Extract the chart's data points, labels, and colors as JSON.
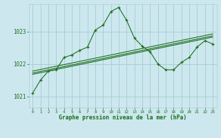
{
  "title": "Graphe pression niveau de la mer (hPa)",
  "background_color": "#cce8ee",
  "grid_color": "#aacdd6",
  "line_color": "#1a6b1a",
  "text_color": "#1a6b1a",
  "ylim": [
    1020.65,
    1023.85
  ],
  "xlim": [
    -0.5,
    23.5
  ],
  "yticks": [
    1021,
    1022,
    1023
  ],
  "xticks": [
    0,
    1,
    2,
    3,
    4,
    5,
    6,
    7,
    8,
    9,
    10,
    11,
    12,
    13,
    14,
    15,
    16,
    17,
    18,
    19,
    20,
    21,
    22,
    23
  ],
  "series": {
    "main": [
      1021.1,
      1021.5,
      1021.78,
      1021.82,
      1022.2,
      1022.28,
      1022.42,
      1022.52,
      1023.05,
      1023.2,
      1023.62,
      1023.75,
      1023.35,
      1022.8,
      1022.55,
      1022.38,
      1022.0,
      1021.82,
      1021.82,
      1022.05,
      1022.2,
      1022.52,
      1022.72,
      1022.62
    ],
    "smooth1": [
      1021.78,
      1021.83,
      1021.88,
      1021.93,
      1021.98,
      1022.03,
      1022.08,
      1022.13,
      1022.18,
      1022.23,
      1022.28,
      1022.33,
      1022.38,
      1022.43,
      1022.48,
      1022.53,
      1022.58,
      1022.63,
      1022.68,
      1022.73,
      1022.78,
      1022.83,
      1022.88,
      1022.93
    ],
    "smooth2": [
      1021.72,
      1021.77,
      1021.82,
      1021.87,
      1021.92,
      1021.97,
      1022.02,
      1022.07,
      1022.12,
      1022.17,
      1022.22,
      1022.27,
      1022.32,
      1022.37,
      1022.42,
      1022.47,
      1022.52,
      1022.57,
      1022.62,
      1022.67,
      1022.72,
      1022.77,
      1022.82,
      1022.87
    ],
    "smooth3": [
      1021.68,
      1021.73,
      1021.78,
      1021.83,
      1021.88,
      1021.93,
      1021.98,
      1022.03,
      1022.08,
      1022.13,
      1022.18,
      1022.23,
      1022.28,
      1022.33,
      1022.38,
      1022.43,
      1022.48,
      1022.53,
      1022.58,
      1022.63,
      1022.68,
      1022.73,
      1022.78,
      1022.83
    ]
  }
}
